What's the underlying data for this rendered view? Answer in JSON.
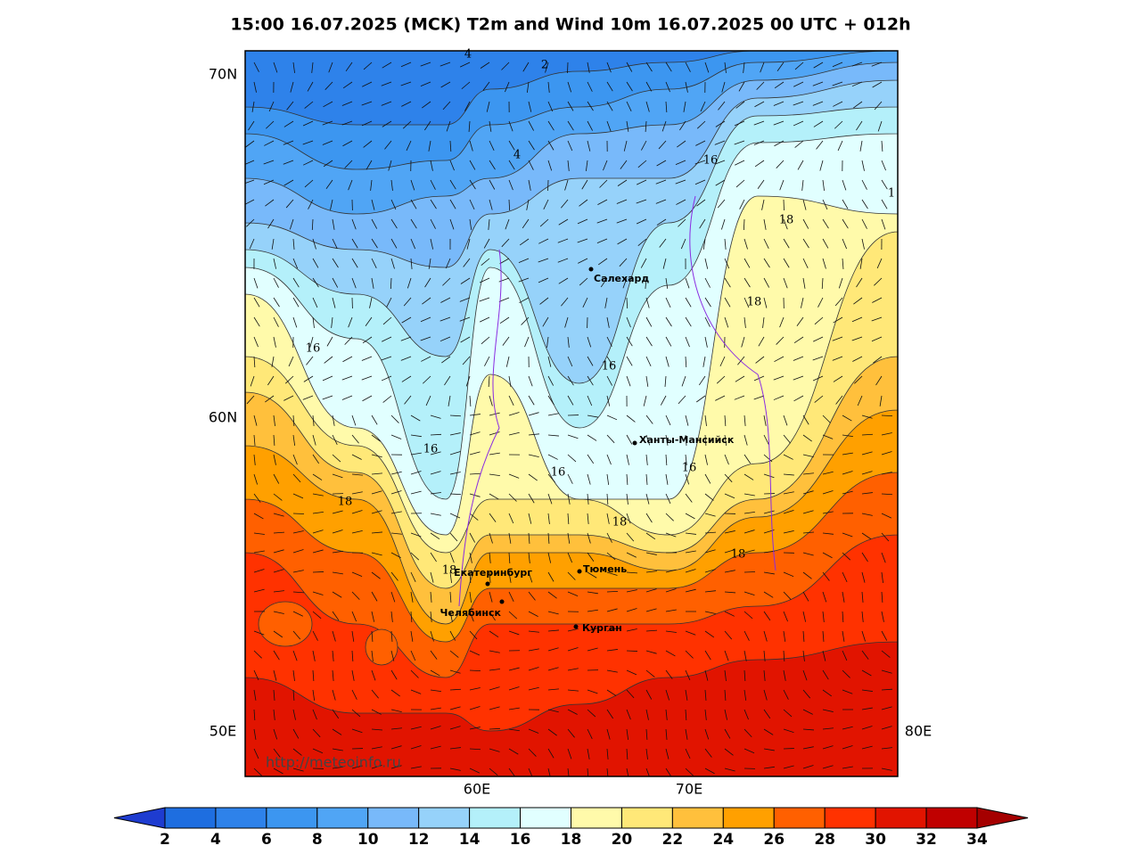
{
  "title": "15:00 16.07.2025 (MCK) T2m and Wind 10m 16.07.2025 00 UTC + 012h",
  "lat_labels": [
    "70N",
    "60N"
  ],
  "lon_labels": [
    "50E",
    "80E",
    "60E",
    "70E"
  ],
  "cities": [
    "Салехард",
    "Ханты-Мансийск",
    "Екатеринбург",
    "Тюмень",
    "Челябинск",
    "Курган"
  ],
  "contour_labels": [
    "4",
    "2",
    "4",
    "16",
    "1",
    "18",
    "18",
    "16",
    "16",
    "16",
    "16",
    "16",
    "18",
    "18",
    "18",
    "18"
  ],
  "watermark": "http://meteoinfo.ru",
  "colorbar": {
    "ticks": [
      2,
      4,
      6,
      8,
      10,
      12,
      14,
      16,
      18,
      20,
      22,
      24,
      26,
      28,
      30,
      32,
      34
    ],
    "colors": [
      "#1e6ee0",
      "#2e82ea",
      "#3c96f0",
      "#50a5f5",
      "#78b9fa",
      "#96d2fa",
      "#b4f0fa",
      "#e1ffff",
      "#fffaaa",
      "#ffe878",
      "#ffc03c",
      "#ffa000",
      "#ff6000",
      "#ff3200",
      "#e11400",
      "#c00000"
    ],
    "under_color": "#1e3cd0",
    "over_color": "#a50000"
  }
}
